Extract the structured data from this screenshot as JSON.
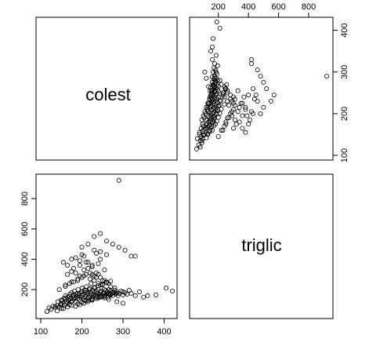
{
  "chart_data": {
    "type": "scatter",
    "layout": "scatterplot-matrix",
    "variables": [
      "colest",
      "triglic"
    ],
    "axes": {
      "colest": {
        "range": [
          100,
          420
        ],
        "ticks": [
          100,
          200,
          300,
          400
        ]
      },
      "triglic": {
        "range": [
          40,
          930
        ],
        "ticks": [
          200,
          400,
          600,
          800
        ]
      }
    },
    "points": {
      "colest": [
        115,
        125,
        130,
        135,
        140,
        142,
        145,
        148,
        150,
        152,
        155,
        156,
        158,
        160,
        162,
        163,
        165,
        166,
        168,
        170,
        171,
        172,
        174,
        175,
        176,
        178,
        180,
        181,
        182,
        184,
        185,
        186,
        188,
        190,
        191,
        192,
        194,
        195,
        196,
        198,
        200,
        201,
        202,
        204,
        205,
        206,
        208,
        210,
        211,
        212,
        214,
        215,
        216,
        218,
        220,
        221,
        222,
        224,
        225,
        226,
        228,
        230,
        232,
        234,
        235,
        236,
        238,
        240,
        242,
        244,
        245,
        246,
        248,
        250,
        252,
        254,
        255,
        256,
        258,
        260,
        262,
        264,
        265,
        266,
        268,
        270,
        272,
        275,
        278,
        280,
        282,
        285,
        288,
        290,
        295,
        300,
        305,
        310,
        320,
        330,
        340,
        350,
        380,
        405,
        160,
        170,
        180,
        190,
        200,
        210,
        220,
        230,
        240,
        250,
        260,
        270,
        280,
        165,
        175,
        185,
        195,
        205,
        215,
        225,
        235,
        245,
        255,
        150,
        160,
        170,
        180,
        190,
        200,
        210,
        220,
        230,
        240,
        250,
        260,
        270,
        185,
        195,
        205,
        215,
        225,
        235,
        245,
        255,
        265,
        275,
        140,
        150,
        165,
        175,
        190,
        200,
        210,
        225,
        240,
        255,
        270,
        285,
        300,
        315,
        180,
        195,
        210,
        225,
        240,
        255,
        175,
        185,
        195,
        205,
        215,
        225,
        235,
        245,
        155,
        165,
        200,
        215,
        230,
        245,
        260,
        145,
        160,
        175,
        190,
        205,
        220,
        235,
        250,
        265,
        230,
        245,
        260,
        275,
        290,
        305,
        320,
        215,
        225,
        235,
        245,
        255,
        265,
        285,
        300,
        120,
        135,
        150,
        200,
        230,
        240,
        290,
        330,
        360,
        420
      ],
      "triglic": [
        55,
        70,
        90,
        80,
        95,
        120,
        85,
        100,
        110,
        130,
        75,
        140,
        95,
        160,
        105,
        120,
        115,
        150,
        130,
        100,
        170,
        140,
        120,
        180,
        125,
        160,
        135,
        150,
        190,
        145,
        120,
        170,
        155,
        140,
        200,
        165,
        135,
        175,
        150,
        185,
        160,
        210,
        145,
        170,
        130,
        195,
        155,
        180,
        220,
        165,
        140,
        175,
        150,
        200,
        160,
        185,
        240,
        170,
        150,
        195,
        165,
        180,
        210,
        160,
        190,
        175,
        155,
        200,
        170,
        185,
        230,
        165,
        190,
        155,
        175,
        200,
        180,
        160,
        195,
        170,
        185,
        150,
        175,
        200,
        165,
        190,
        175,
        160,
        180,
        195,
        170,
        185,
        160,
        175,
        190,
        165,
        180,
        170,
        175,
        160,
        185,
        150,
        165,
        210,
        220,
        240,
        250,
        260,
        280,
        300,
        270,
        260,
        240,
        230,
        250,
        220,
        210,
        300,
        320,
        310,
        290,
        330,
        340,
        300,
        310,
        280,
        260,
        130,
        145,
        155,
        165,
        175,
        185,
        195,
        205,
        215,
        225,
        235,
        245,
        255,
        90,
        100,
        110,
        120,
        130,
        140,
        150,
        160,
        170,
        180,
        60,
        75,
        85,
        95,
        105,
        115,
        125,
        135,
        145,
        155,
        165,
        175,
        185,
        195,
        340,
        360,
        380,
        350,
        370,
        330,
        400,
        410,
        390,
        420,
        380,
        360,
        440,
        400,
        380,
        360,
        480,
        500,
        460,
        450,
        430,
        200,
        230,
        250,
        270,
        290,
        310,
        280,
        260,
        240,
        550,
        570,
        520,
        500,
        480,
        460,
        420,
        130,
        140,
        150,
        155,
        145,
        135,
        120,
        110,
        80,
        90,
        100,
        430,
        290,
        300,
        920,
        420,
        160,
        190
      ]
    }
  }
}
